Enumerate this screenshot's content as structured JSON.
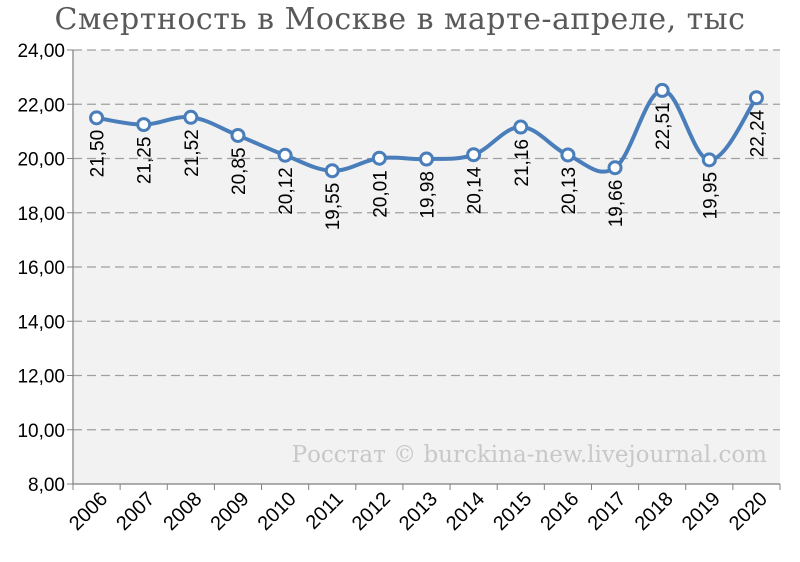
{
  "chart_data": {
    "type": "line",
    "title": "Смертность в Москве в марте-апреле, тыс",
    "categories": [
      "2006",
      "2007",
      "2008",
      "2009",
      "2010",
      "2011",
      "2012",
      "2013",
      "2014",
      "2015",
      "2016",
      "2017",
      "2018",
      "2019",
      "2020"
    ],
    "values": [
      21.5,
      21.25,
      21.52,
      20.85,
      20.12,
      19.55,
      20.01,
      19.98,
      20.14,
      21.16,
      20.13,
      19.66,
      22.51,
      19.95,
      22.24
    ],
    "data_labels": [
      "21,50",
      "21,25",
      "21,52",
      "20,85",
      "20,12",
      "19,55",
      "20,01",
      "19,98",
      "20,14",
      "21,16",
      "20,13",
      "19,66",
      "22,51",
      "19,95",
      "22,24"
    ],
    "y_ticks": [
      "8,00",
      "10,00",
      "12,00",
      "14,00",
      "16,00",
      "18,00",
      "20,00",
      "22,00",
      "24,00"
    ],
    "ylim": [
      8,
      24
    ],
    "grid": true,
    "legend": "none",
    "colors": {
      "line": "#4A7EBB",
      "plot_bg": "#F2F2F2",
      "grid": "#A0A0A0"
    }
  },
  "watermark": "Росстат © burckina-new.livejournal.com"
}
